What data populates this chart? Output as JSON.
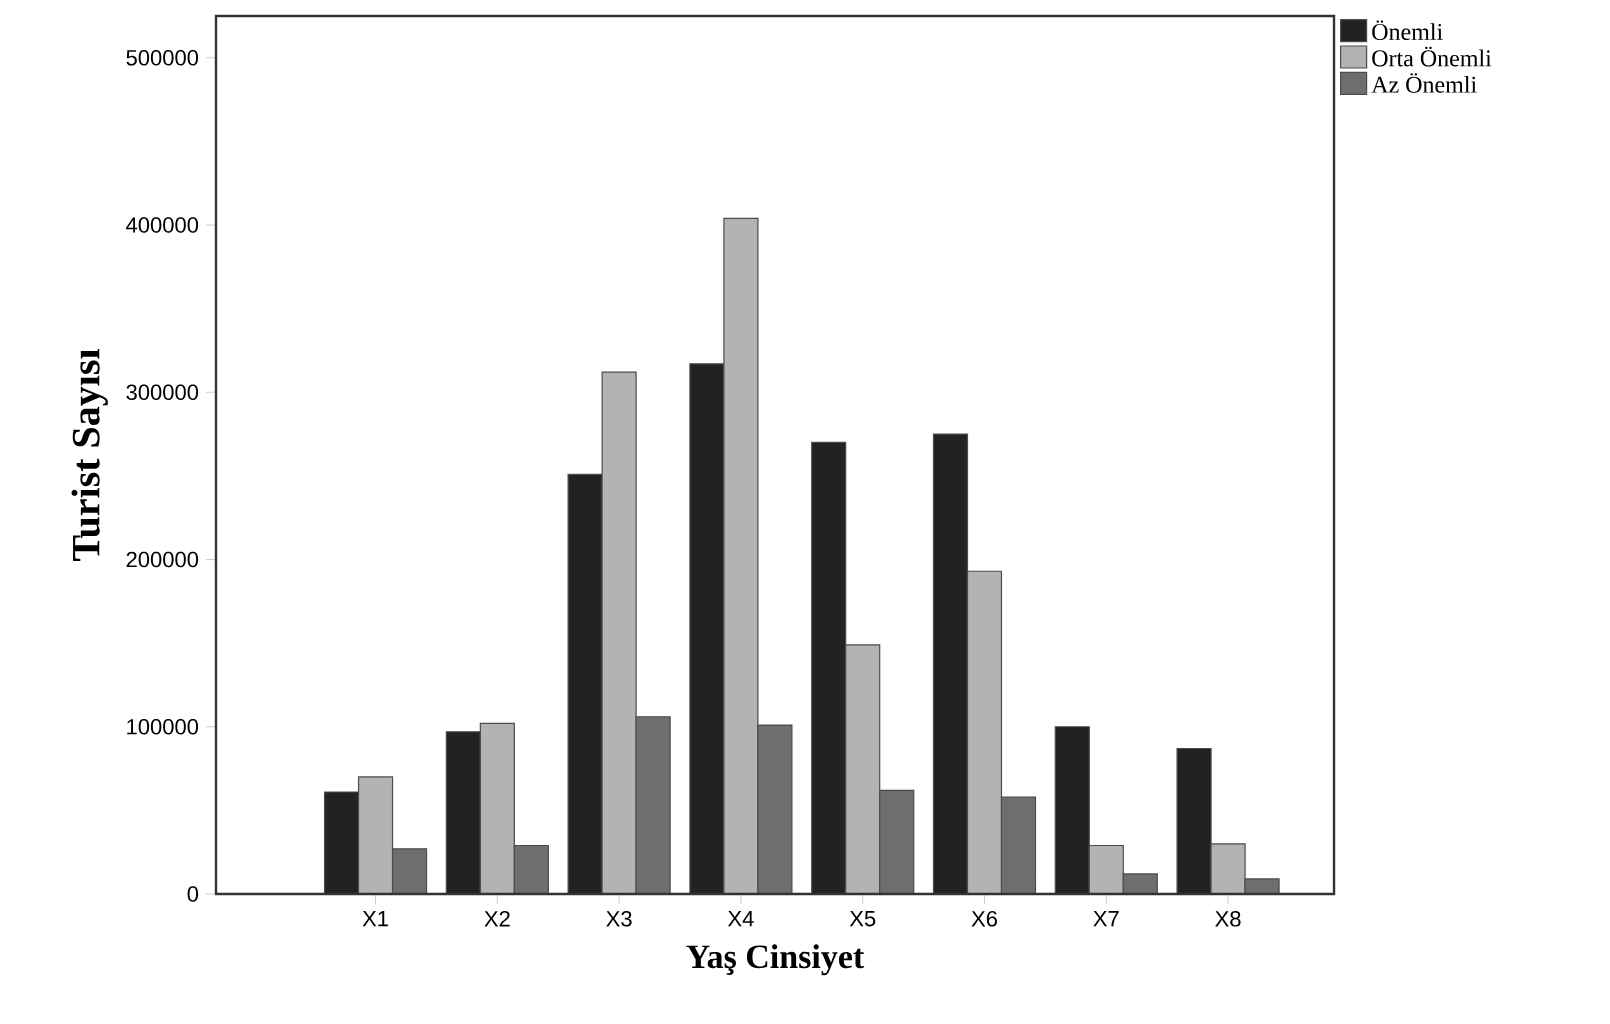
{
  "chart_data": {
    "type": "bar",
    "xlabel": "Yaş Cinsiyet",
    "ylabel": "Turist Sayısı",
    "categories": [
      "X1",
      "X2",
      "X3",
      "X4",
      "X5",
      "X6",
      "X7",
      "X8"
    ],
    "series": [
      {
        "name": "Önemli",
        "color": "#222222",
        "values": [
          61000,
          97000,
          251000,
          317000,
          270000,
          275000,
          100000,
          87000
        ]
      },
      {
        "name": "Orta Önemli",
        "color": "#b3b3b3",
        "values": [
          70000,
          102000,
          312000,
          404000,
          149000,
          193000,
          29000,
          30000
        ]
      },
      {
        "name": "Az Önemli",
        "color": "#6e6e6e",
        "values": [
          27000,
          29000,
          106000,
          101000,
          62000,
          58000,
          12000,
          9000
        ]
      }
    ],
    "ylim": [
      0,
      525000
    ],
    "yticks": [
      0,
      100000,
      200000,
      300000,
      400000,
      500000
    ],
    "grid": false,
    "legend": "top right"
  }
}
